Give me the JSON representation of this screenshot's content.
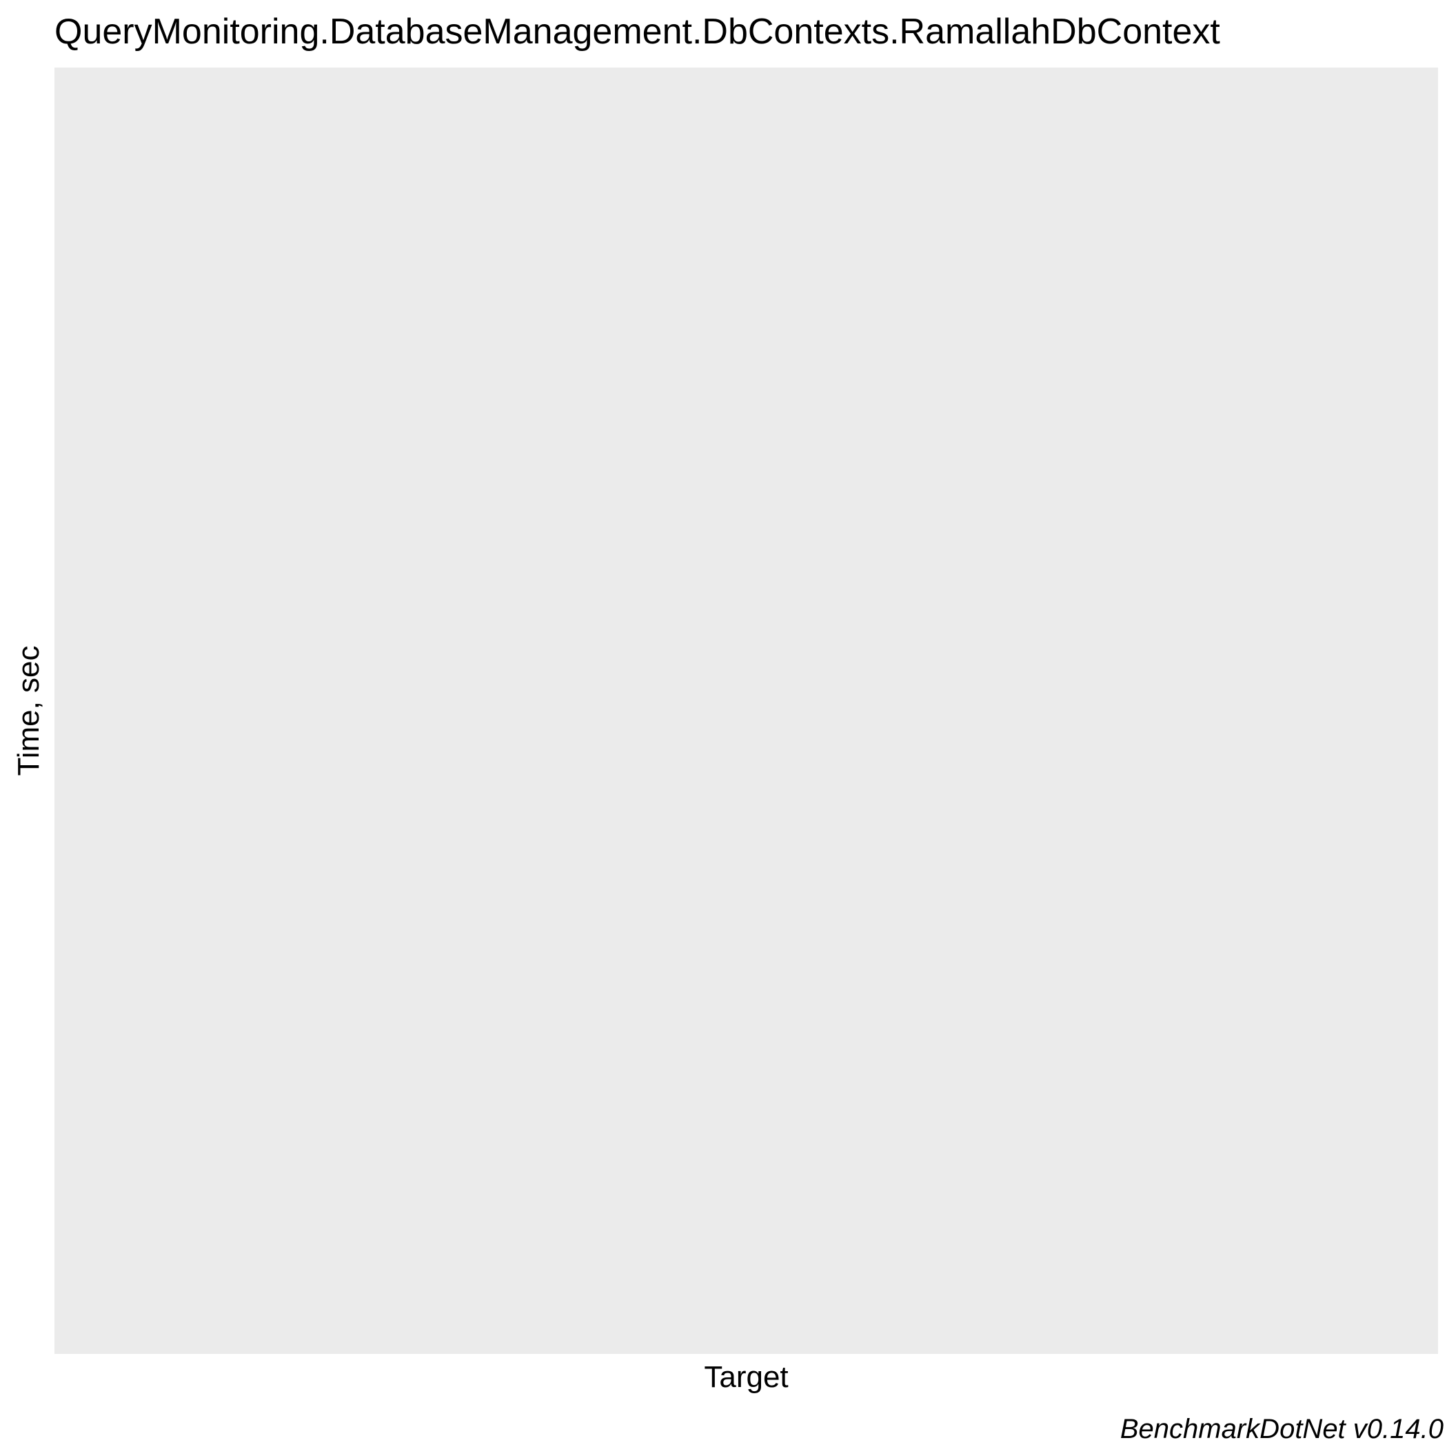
{
  "chart_data": {
    "type": "bar",
    "title": "QueryMonitoring.DatabaseManagement.DbContexts.RamallahDbContext",
    "xlabel": "Target",
    "ylabel": "Time, sec",
    "categories": [],
    "series": [],
    "grid": false,
    "legend": "none",
    "caption": "BenchmarkDotNet v0.14.0",
    "panel_color": "#ebebeb"
  }
}
